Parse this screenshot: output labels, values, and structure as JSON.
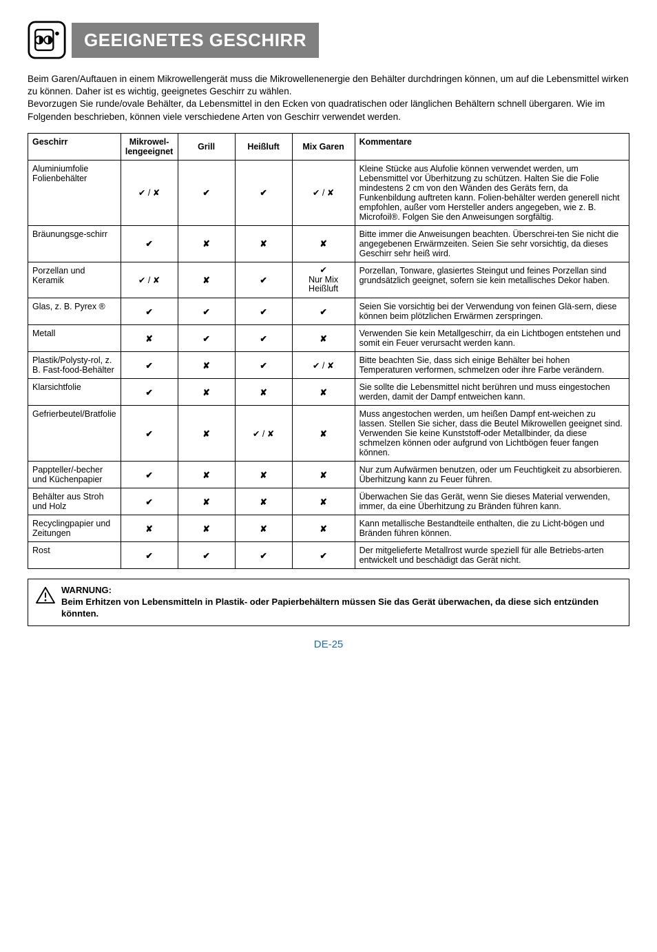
{
  "header": {
    "title": "GEEIGNETES GESCHIRR",
    "title_bg": "#808080",
    "title_color": "#ffffff"
  },
  "intro": {
    "p1": "Beim Garen/Auftauen in einem Mikrowellengerät muss die Mikrowellenenergie den Behälter durchdringen können, um auf die Lebensmittel wirken zu können. Daher ist es wichtig, geeignetes Geschirr zu wählen.",
    "p2": "Bevorzugen Sie runde/ovale Behälter, da Lebensmittel in den Ecken von quadratischen oder länglichen Behältern schnell übergaren. Wie im Folgenden beschrieben, können viele verschiedene Arten von Geschirr verwendet werden."
  },
  "table": {
    "headers": {
      "geschirr": "Geschirr",
      "mikro": "Mikrowel-lengeeignet",
      "grill": "Grill",
      "heissluft": "Heißluft",
      "mix": "Mix Garen",
      "kommentare": "Kommentare"
    },
    "symbols": {
      "check": "✔",
      "cross": "✘",
      "both": "✔ / ✘",
      "nurmix_line1": "✔",
      "nurmix_line2": "Nur Mix",
      "nurmix_line3": "Heißluft"
    },
    "rows": [
      {
        "name": "Aluminiumfolie Folienbehälter",
        "mikro": "both",
        "grill": "check",
        "heissluft": "check",
        "mix": "both",
        "comment": "Kleine Stücke aus Alufolie können verwendet werden, um Lebensmittel vor Überhitzung zu schützen. Halten Sie die Folie mindestens 2 cm von den Wänden des Geräts fern, da Funkenbildung auftreten kann. Folien-behälter werden generell nicht empfohlen, außer vom Hersteller anders angegeben, wie z. B. Microfoil®. Folgen Sie den Anweisungen sorgfältig."
      },
      {
        "name": "Bräunungsge-schirr",
        "mikro": "check",
        "grill": "cross",
        "heissluft": "cross",
        "mix": "cross",
        "comment": "Bitte immer die Anweisungen beachten. Überschrei-ten Sie nicht die angegebenen Erwärmzeiten. Seien Sie sehr vorsichtig, da dieses Geschirr sehr heiß wird."
      },
      {
        "name": "Porzellan und Keramik",
        "mikro": "both",
        "grill": "cross",
        "heissluft": "check",
        "mix": "nurmix",
        "comment": "Porzellan, Tonware, glasiertes Steingut und feines Porzellan sind grundsätzlich geeignet, sofern sie kein metallisches Dekor haben."
      },
      {
        "name": "Glas, z. B. Pyrex ®",
        "mikro": "check",
        "grill": "check",
        "heissluft": "check",
        "mix": "check",
        "comment": "Seien Sie vorsichtig bei der Verwendung von feinen Glä-sern, diese können beim plötzlichen Erwärmen zerspringen."
      },
      {
        "name": "Metall",
        "mikro": "cross",
        "grill": "check",
        "heissluft": "check",
        "mix": "cross",
        "comment": "Verwenden Sie kein Metallgeschirr, da ein Lichtbogen entstehen und somit ein Feuer verursacht werden kann."
      },
      {
        "name": "Plastik/Polysty-rol, z. B. Fast-food-Behälter",
        "mikro": "check",
        "grill": "cross",
        "heissluft": "check",
        "mix": "both",
        "comment": "Bitte beachten Sie, dass sich einige Behälter bei hohen Temperaturen verformen, schmelzen oder ihre Farbe verändern."
      },
      {
        "name": "Klarsichtfolie",
        "mikro": "check",
        "grill": "cross",
        "heissluft": "cross",
        "mix": "cross",
        "comment": "Sie sollte die Lebensmittel nicht berühren und muss eingestochen werden, damit der Dampf entweichen kann."
      },
      {
        "name": "Gefrierbeutel/Bratfolie",
        "mikro": "check",
        "grill": "cross",
        "heissluft": "both",
        "mix": "cross",
        "comment": "Muss angestochen werden, um heißen Dampf ent-weichen zu lassen. Stellen Sie sicher, dass die Beutel Mikrowellen geeignet sind. Verwenden Sie keine Kunststoff-oder Metallbinder, da diese schmelzen können oder aufgrund von Lichtbögen feuer fangen können."
      },
      {
        "name": "Pappteller/-becher und Küchenpapier",
        "mikro": "check",
        "grill": "cross",
        "heissluft": "cross",
        "mix": "cross",
        "comment": "Nur zum Aufwärmen benutzen, oder um Feuchtigkeit zu absorbieren. Überhitzung kann zu Feuer führen."
      },
      {
        "name": "Behälter aus Stroh und Holz",
        "mikro": "check",
        "grill": "cross",
        "heissluft": "cross",
        "mix": "cross",
        "comment": "Überwachen Sie das Gerät, wenn Sie dieses Material verwenden, immer, da eine Überhitzung zu Bränden führen kann."
      },
      {
        "name": "Recyclingpapier und Zeitungen",
        "mikro": "cross",
        "grill": "cross",
        "heissluft": "cross",
        "mix": "cross",
        "comment": "Kann metallische Bestandteile enthalten, die zu Licht-bögen und Bränden führen können."
      },
      {
        "name": "Rost",
        "mikro": "check",
        "grill": "check",
        "heissluft": "check",
        "mix": "check",
        "comment": "Der mitgelieferte Metallrost wurde speziell für alle Betriebs-arten entwickelt und beschädigt das Gerät nicht."
      }
    ]
  },
  "warning": {
    "title": "WARNUNG:",
    "text": "Beim Erhitzen von Lebensmitteln in Plastik- oder Papierbehältern müssen Sie das Gerät überwachen, da diese sich entzünden könnten."
  },
  "footer": {
    "page": "DE-25",
    "color": "#1a6bb0"
  }
}
